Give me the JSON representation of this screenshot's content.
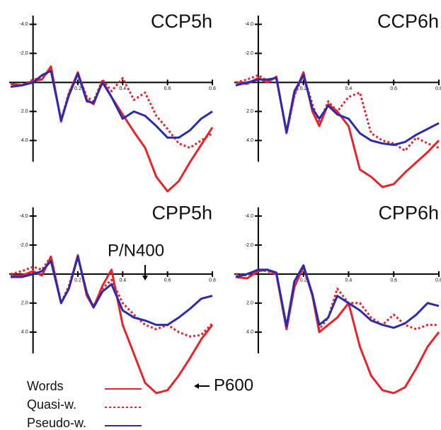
{
  "chart_data": [
    {
      "type": "line",
      "title": "CCP5h",
      "x": [
        -0.1,
        -0.05,
        0,
        0.04,
        0.08,
        0.125,
        0.16,
        0.2,
        0.24,
        0.27,
        0.31,
        0.35,
        0.4,
        0.45,
        0.5,
        0.55,
        0.6,
        0.65,
        0.7,
        0.75,
        0.8
      ],
      "xlim": [
        -0.1,
        0.8
      ],
      "xticks": [
        0.2,
        0.4,
        0.6,
        0.8
      ],
      "ylim": [
        -4.7,
        8.5
      ],
      "y_inverted": true,
      "yticks": [
        {
          "value": -4,
          "label": "-4.0"
        },
        {
          "value": -2,
          "label": "-2.0"
        },
        {
          "value": 2,
          "label": "2.0"
        },
        {
          "value": 4,
          "label": "4.0"
        }
      ],
      "series": [
        {
          "name": "Words",
          "color": "#e8232a",
          "style": "solid",
          "values": [
            0.1,
            0.2,
            -0.1,
            -0.2,
            -1.1,
            2.7,
            0.8,
            -0.7,
            1.2,
            1.5,
            -0.1,
            1.0,
            2.2,
            3.4,
            4.5,
            6.5,
            7.5,
            6.8,
            5.5,
            4.3,
            3.1
          ]
        },
        {
          "name": "Quasi-w.",
          "color": "#e8232a",
          "style": "dotted",
          "values": [
            0.1,
            0.2,
            -0.2,
            -0.3,
            -0.9,
            2.6,
            0.7,
            -0.6,
            1.0,
            1.3,
            -0.2,
            0.6,
            -0.3,
            1.2,
            0.7,
            2.3,
            3.2,
            4.2,
            4.5,
            4.0,
            3.5
          ]
        },
        {
          "name": "Pseudo-w.",
          "color": "#2b2bb0",
          "style": "solid",
          "values": [
            0.3,
            0.2,
            0,
            -0.5,
            -0.8,
            2.6,
            0.9,
            -0.6,
            1.3,
            1.4,
            0,
            1.0,
            2.5,
            2.0,
            2.3,
            3.0,
            3.8,
            3.8,
            3.3,
            2.5,
            2.0
          ]
        }
      ]
    },
    {
      "type": "line",
      "title": "CCP6h",
      "x": [
        -0.1,
        -0.05,
        0,
        0.04,
        0.08,
        0.125,
        0.16,
        0.2,
        0.24,
        0.27,
        0.31,
        0.35,
        0.4,
        0.45,
        0.5,
        0.55,
        0.6,
        0.65,
        0.7,
        0.75,
        0.8
      ],
      "xlim": [
        -0.1,
        0.8
      ],
      "xticks": [
        0.2,
        0.4,
        0.6,
        0.8
      ],
      "ylim": [
        -4.7,
        8.5
      ],
      "y_inverted": true,
      "yticks": [
        {
          "value": -4,
          "label": "-4.0"
        },
        {
          "value": -2,
          "label": "-2.0"
        },
        {
          "value": 2,
          "label": "2.0"
        },
        {
          "value": 4,
          "label": "4.0"
        }
      ],
      "series": [
        {
          "name": "Words",
          "color": "#e8232a",
          "style": "solid",
          "values": [
            0,
            0.1,
            -0.3,
            0,
            -0.4,
            3.5,
            0.8,
            -0.7,
            2.0,
            3.0,
            1.5,
            2.0,
            3.0,
            6.0,
            6.5,
            7.2,
            7.0,
            6.2,
            5.5,
            4.8,
            4.0
          ]
        },
        {
          "name": "Quasi-w.",
          "color": "#e8232a",
          "style": "dotted",
          "values": [
            0,
            -0.2,
            -0.5,
            -0.1,
            -0.3,
            3.5,
            0.9,
            -0.5,
            1.5,
            2.8,
            1.3,
            2.0,
            1.0,
            0.7,
            3.5,
            4.0,
            4.2,
            4.7,
            3.8,
            4.2,
            4.5
          ]
        },
        {
          "name": "Pseudo-w.",
          "color": "#2b2bb0",
          "style": "solid",
          "values": [
            0.2,
            0,
            -0.2,
            -0.2,
            -0.3,
            3.4,
            0.6,
            -0.5,
            1.8,
            2.5,
            1.6,
            2.2,
            2.5,
            3.5,
            4.0,
            4.2,
            4.3,
            4.1,
            3.6,
            3.2,
            2.8
          ]
        }
      ]
    },
    {
      "type": "line",
      "title": "CPP5h",
      "x": [
        -0.1,
        -0.05,
        0,
        0.04,
        0.08,
        0.125,
        0.16,
        0.2,
        0.24,
        0.27,
        0.31,
        0.35,
        0.4,
        0.45,
        0.5,
        0.55,
        0.6,
        0.65,
        0.7,
        0.75,
        0.8
      ],
      "xlim": [
        -0.1,
        0.8
      ],
      "xticks": [
        0.2,
        0.4,
        0.6,
        0.8
      ],
      "ylim": [
        -4.7,
        8.5
      ],
      "y_inverted": true,
      "yticks": [
        {
          "value": -4,
          "label": "-4.0"
        },
        {
          "value": -2,
          "label": "-2.0"
        },
        {
          "value": 2,
          "label": "2.0"
        },
        {
          "value": 4,
          "label": "4.0"
        }
      ],
      "annotations": [
        "P/N400",
        "P600"
      ],
      "series": [
        {
          "name": "Words",
          "color": "#e8232a",
          "style": "solid",
          "values": [
            0.1,
            0.1,
            -0.2,
            0.1,
            -1.2,
            2.0,
            1.0,
            -1.3,
            1.5,
            2.3,
            0.8,
            -0.3,
            3.5,
            5.5,
            7.5,
            8.2,
            8.0,
            7.0,
            5.8,
            4.5,
            3.5
          ]
        },
        {
          "name": "Quasi-w.",
          "color": "#e8232a",
          "style": "dotted",
          "values": [
            0,
            -0.2,
            -0.5,
            -0.3,
            -1.2,
            2.0,
            0.8,
            -1.2,
            1.5,
            2.2,
            1.0,
            0.4,
            2.0,
            2.8,
            3.5,
            3.8,
            3.5,
            4.0,
            4.3,
            4.2,
            3.4
          ]
        },
        {
          "name": "Pseudo-w.",
          "color": "#2b2bb0",
          "style": "solid",
          "values": [
            0.2,
            0.2,
            0,
            -0.2,
            -0.9,
            2.0,
            1.0,
            -1.2,
            1.3,
            2.3,
            1.2,
            0.7,
            2.5,
            3.0,
            3.2,
            3.5,
            3.5,
            3.0,
            2.4,
            1.7,
            1.5
          ]
        }
      ]
    },
    {
      "type": "line",
      "title": "CPP6h",
      "x": [
        -0.1,
        -0.05,
        0,
        0.04,
        0.08,
        0.125,
        0.16,
        0.2,
        0.24,
        0.27,
        0.31,
        0.35,
        0.4,
        0.45,
        0.5,
        0.55,
        0.6,
        0.65,
        0.7,
        0.75,
        0.8
      ],
      "xlim": [
        -0.1,
        0.8
      ],
      "xticks": [
        0.2,
        0.4,
        0.6,
        0.8
      ],
      "ylim": [
        -4.7,
        8.5
      ],
      "y_inverted": true,
      "yticks": [
        {
          "value": -4,
          "label": "-4.0"
        },
        {
          "value": -2,
          "label": "-2.0"
        },
        {
          "value": 2,
          "label": "2.0"
        },
        {
          "value": 4,
          "label": "4.0"
        }
      ],
      "series": [
        {
          "name": "Words",
          "color": "#e8232a",
          "style": "solid",
          "values": [
            0.2,
            0.3,
            -0.2,
            -0.3,
            0,
            3.8,
            0.9,
            -0.5,
            1.5,
            4.0,
            3.5,
            3.0,
            2.0,
            5.0,
            7.0,
            8.0,
            8.2,
            7.8,
            6.5,
            5.0,
            4.0
          ]
        },
        {
          "name": "Quasi-w.",
          "color": "#e8232a",
          "style": "dotted",
          "values": [
            0,
            0.1,
            -0.3,
            -0.2,
            0,
            3.8,
            0.5,
            -0.6,
            1.5,
            3.8,
            3.0,
            1.0,
            2.0,
            2.0,
            3.0,
            3.5,
            2.8,
            3.5,
            3.8,
            3.5,
            3.5
          ]
        },
        {
          "name": "Pseudo-w.",
          "color": "#2b2bb0",
          "style": "solid",
          "values": [
            0.2,
            0,
            -0.3,
            -0.3,
            -0.1,
            3.6,
            0.5,
            -0.6,
            1.4,
            3.5,
            3.0,
            1.5,
            2.0,
            2.5,
            3.2,
            3.5,
            3.7,
            3.4,
            2.8,
            2.0,
            2.2
          ]
        }
      ]
    }
  ]
}
